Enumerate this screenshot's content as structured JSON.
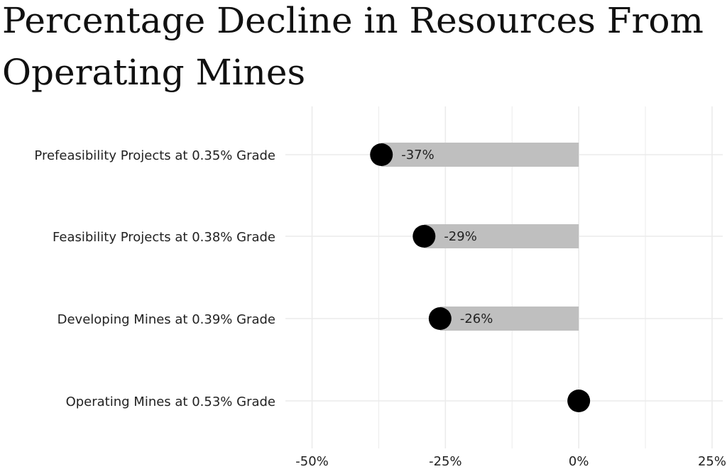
{
  "chart_data": {
    "type": "bar",
    "title_lines": [
      "Percentage Decline in Resources From",
      "Operating Mines"
    ],
    "title": "Percentage Decline in Resources From Operating Mines",
    "xlabel": "",
    "ylabel": "",
    "orientation": "horizontal",
    "categories": [
      "Prefeasibility Projects at 0.35% Grade",
      "Feasibility Projects at 0.38% Grade",
      "Developing Mines at 0.39% Grade",
      "Operating Mines at 0.53% Grade"
    ],
    "values": [
      -37,
      -29,
      -26,
      0
    ],
    "data_labels": [
      "-37%",
      "-29%",
      "-26%",
      ""
    ],
    "xlim": [
      -55,
      27
    ],
    "x_ticks": [
      -50,
      -25,
      0,
      25
    ],
    "x_tick_labels": [
      "-50%",
      "-25%",
      "0%",
      "25%"
    ],
    "grid": true,
    "legend": "none",
    "colors": {
      "bar": "#bfbfbf",
      "dot": "#000000",
      "grid": "#ebebeb"
    }
  }
}
